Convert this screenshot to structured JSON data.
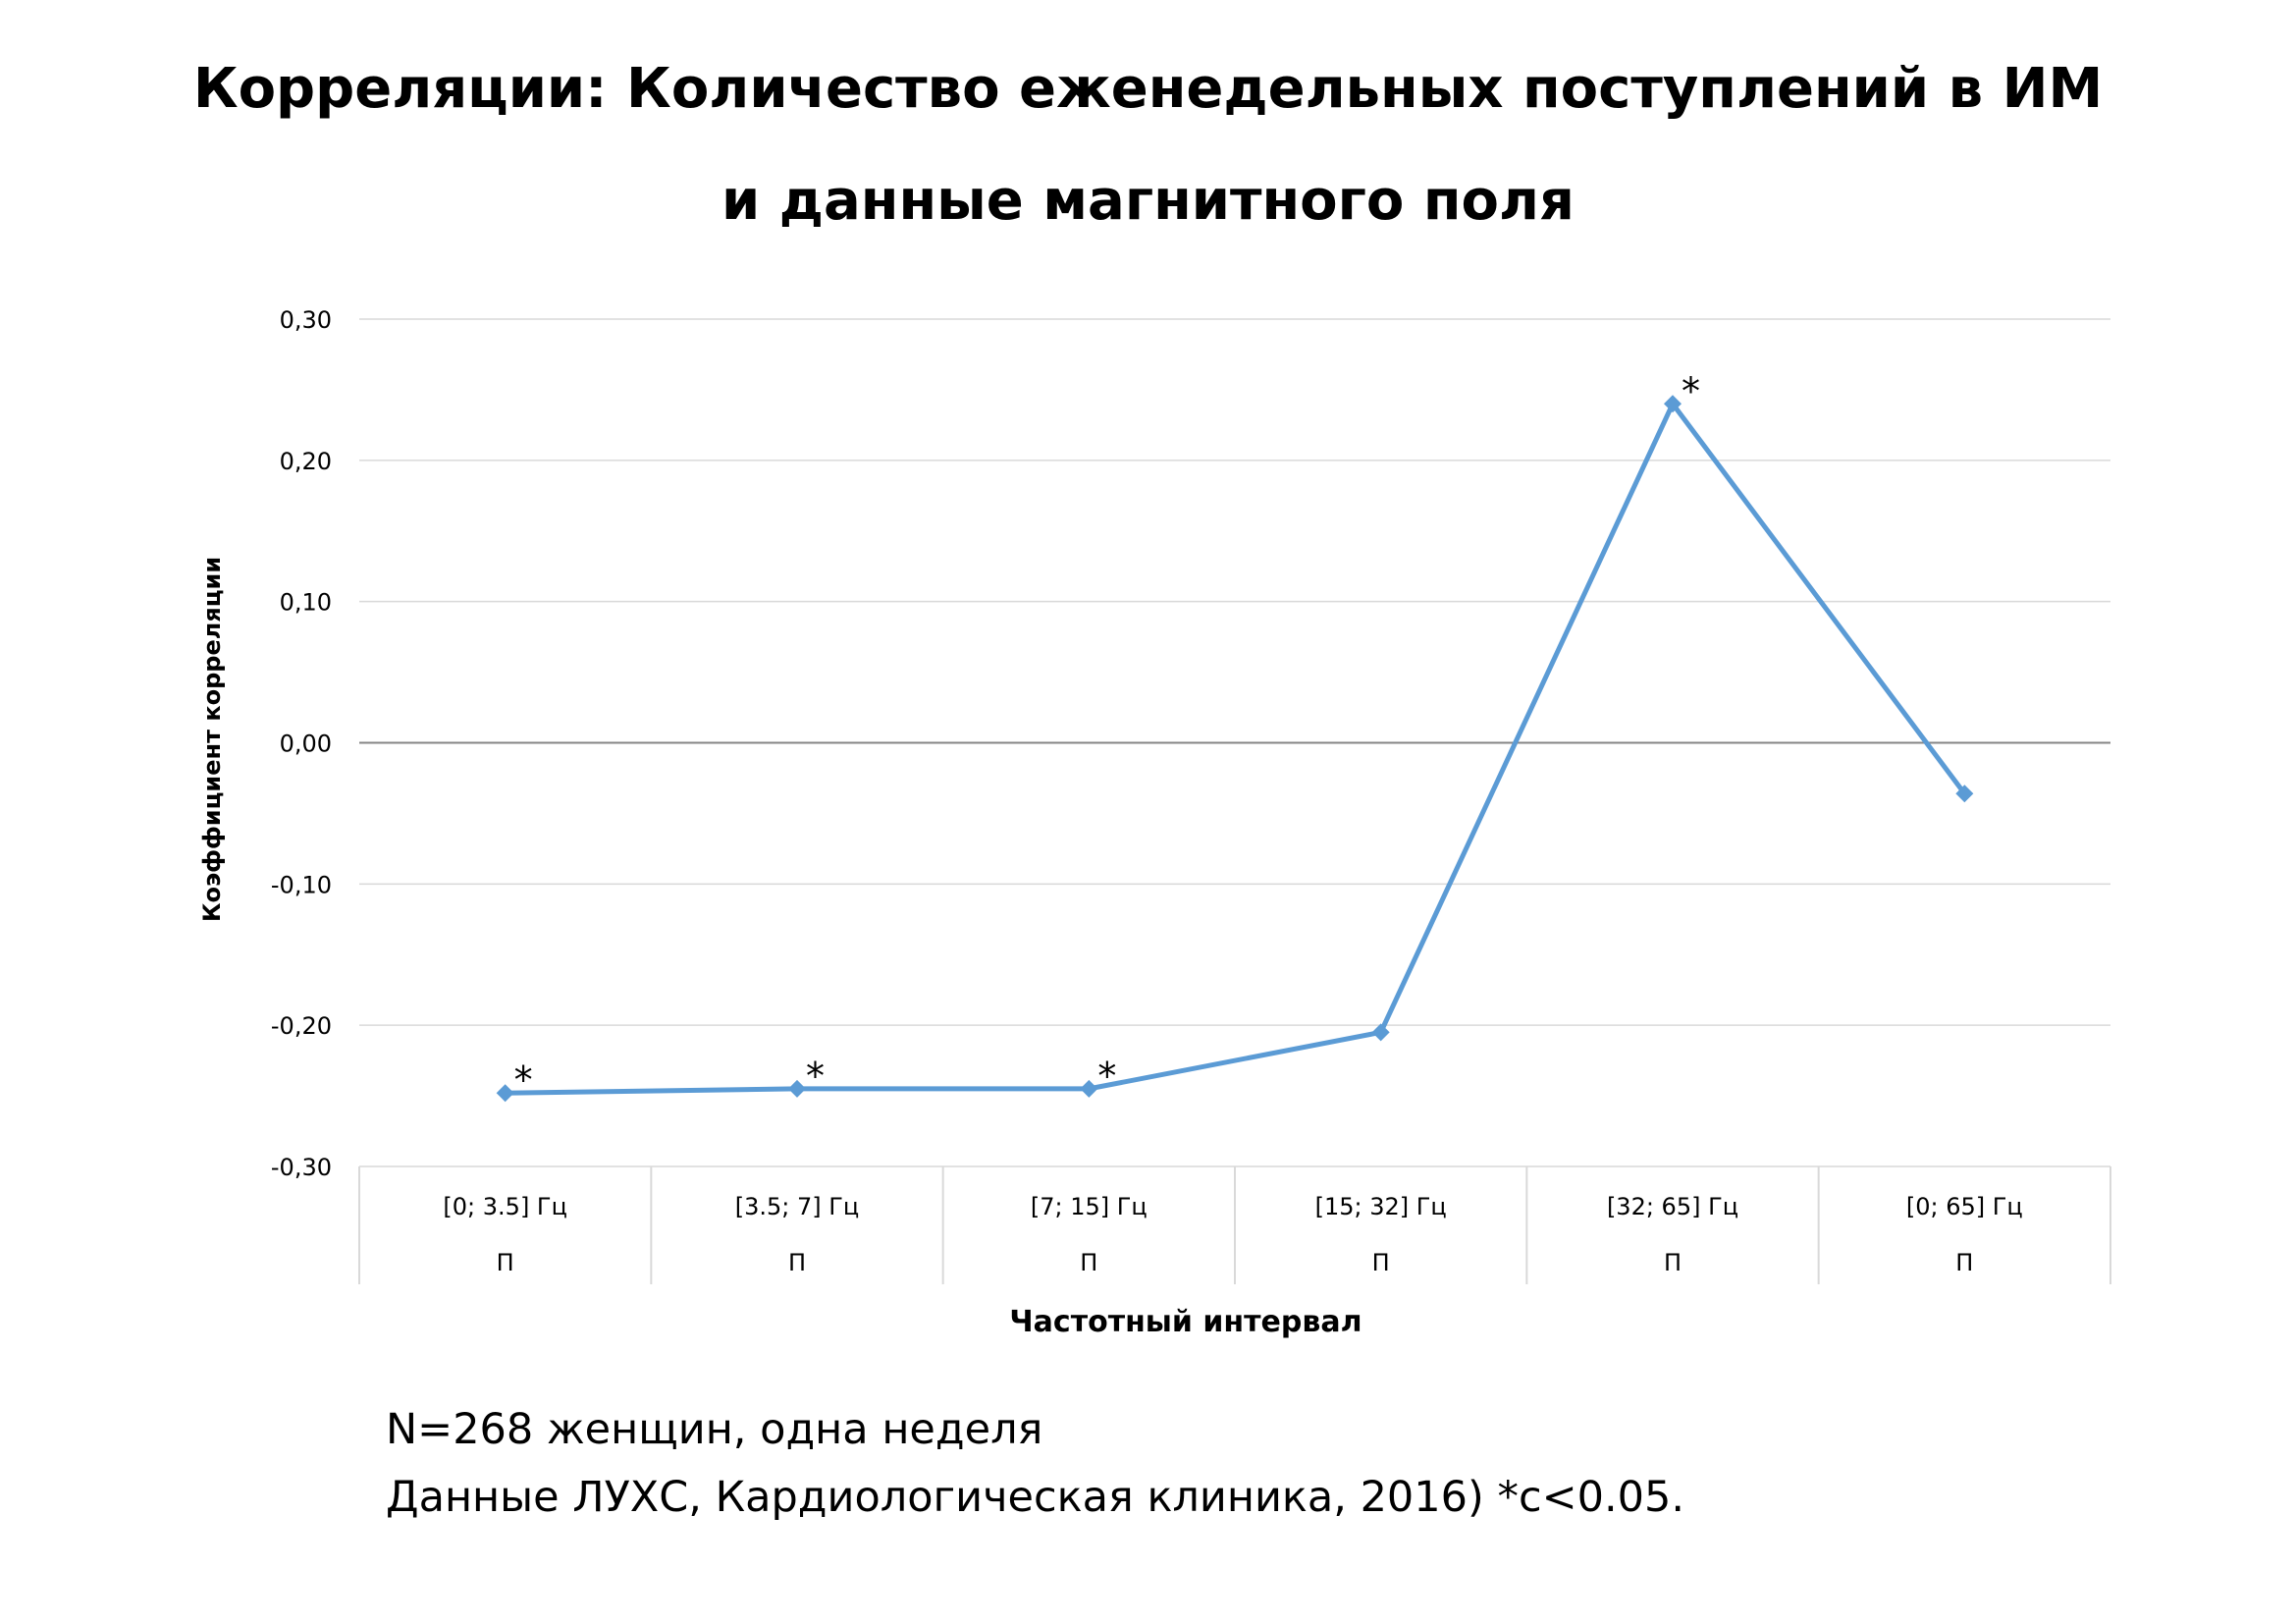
{
  "title": {
    "line1": "Корреляции: Количество еженедельных поступлений в ИМ",
    "line2": "и данные магнитного поля"
  },
  "footnotes": {
    "line1": "N=268 женщин, одна неделя",
    "line2": "Данные ЛУХС, Кардиологическая клиника, 2016) *с<0.05."
  },
  "chart_data": {
    "type": "line",
    "title": "Корреляции: Количество еженедельных поступлений в ИМ и данные магнитного поля",
    "xlabel": "Частотный интервал",
    "ylabel": "Коэффициент корреляции",
    "categories": [
      "[0; 3.5] Гц",
      "[3.5; 7] Гц",
      "[7; 15] Гц",
      "[15; 32] Гц",
      "[32; 65] Гц",
      "[0; 65] Гц"
    ],
    "category_sublabels": [
      "П",
      "П",
      "П",
      "П",
      "П",
      "П"
    ],
    "series": [
      {
        "values": [
          -0.248,
          -0.245,
          -0.245,
          -0.205,
          0.24,
          -0.036
        ],
        "significant": [
          true,
          true,
          true,
          false,
          true,
          false
        ],
        "color": "#5b9bd5"
      }
    ],
    "significance_marker": "*",
    "ylim": [
      -0.3,
      0.3
    ],
    "yticks": [
      0.3,
      0.2,
      0.1,
      0.0,
      -0.1,
      -0.2,
      -0.3
    ],
    "ytick_labels": [
      "0,30",
      "0,20",
      "0,10",
      "0,00",
      "-0,10",
      "-0,20",
      "-0,30"
    ],
    "grid": true,
    "gridline_color": "#d9d9d9",
    "zero_line_color": "#868686",
    "legend": "none"
  }
}
